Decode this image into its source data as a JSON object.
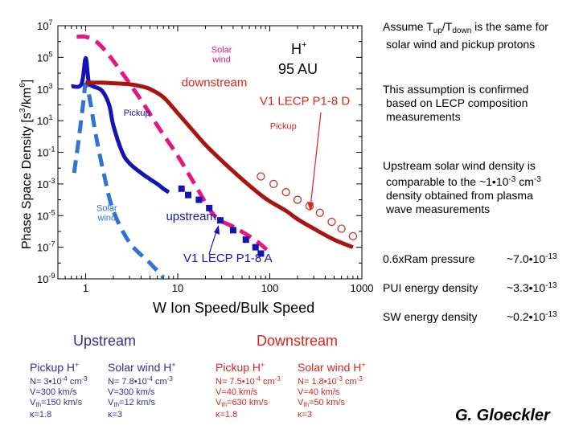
{
  "chart_data": {
    "type": "line",
    "xscale": "log",
    "yscale": "log",
    "xlim": [
      0.5,
      1000
    ],
    "ylim": [
      1e-09,
      10000000.0
    ],
    "xlabel": "W  Ion Speed/Bulk Speed",
    "ylabel_main": "Phase Space Density [s",
    "ylabel_sup1": "3",
    "ylabel_mid": "/km",
    "ylabel_sup2": "6",
    "ylabel_end": "]",
    "species": "H",
    "species_charge": "+",
    "distance": "95 AU",
    "x_ticks": [
      {
        "v": 1,
        "label": "1"
      },
      {
        "v": 10,
        "label": "10"
      },
      {
        "v": 100,
        "label": "100"
      },
      {
        "v": 1000,
        "label": "1000"
      }
    ],
    "y_ticks": [
      {
        "exp": 7,
        "base": "10",
        "sup": "7"
      },
      {
        "exp": 5,
        "base": "10",
        "sup": "5"
      },
      {
        "exp": 3,
        "base": "10",
        "sup": "3"
      },
      {
        "exp": 1,
        "base": "10",
        "sup": "1"
      },
      {
        "exp": -1,
        "base": "10",
        "sup": "-1"
      },
      {
        "exp": -3,
        "base": "10",
        "sup": "-3"
      },
      {
        "exp": -5,
        "base": "10",
        "sup": "-5"
      },
      {
        "exp": -7,
        "base": "10",
        "sup": "-7"
      },
      {
        "exp": -9,
        "base": "10",
        "sup": "-9"
      }
    ],
    "series": [
      {
        "key": "solar_wind_upstream",
        "color": "#2f73d6",
        "style": "dashed",
        "points": [
          [
            0.75,
            0.005
          ],
          [
            0.85,
            1
          ],
          [
            0.95,
            200
          ],
          [
            1.0,
            2000
          ],
          [
            1.1,
            300
          ],
          [
            1.3,
            1
          ],
          [
            1.6,
            0.003
          ],
          [
            2,
            2e-05
          ],
          [
            3,
            2e-07
          ],
          [
            5,
            1e-08
          ],
          [
            7,
            1.2e-09
          ]
        ]
      },
      {
        "key": "pickup_upstream",
        "color": "#1414b4",
        "style": "solid",
        "points": [
          [
            0.7,
            1500
          ],
          [
            0.9,
            2000
          ],
          [
            1.0,
            90000
          ],
          [
            1.08,
            3000
          ],
          [
            1.2,
            1500
          ],
          [
            1.5,
            800
          ],
          [
            1.8,
            100
          ],
          [
            2.0,
            5
          ],
          [
            2.5,
            0.1
          ],
          [
            3,
            0.02
          ],
          [
            4,
            0.005
          ],
          [
            5,
            0.002
          ],
          [
            6,
            0.001
          ],
          [
            7,
            0.0005
          ],
          [
            8,
            0.0003
          ]
        ]
      },
      {
        "key": "solar_wind_downstream",
        "color": "#e5177e",
        "style": "dashed",
        "points": [
          [
            0.8,
            2000000.0
          ],
          [
            1,
            2000000.0
          ],
          [
            1.3,
            1000000.0
          ],
          [
            1.7,
            200000.0
          ],
          [
            2.5,
            10000.0
          ],
          [
            4,
            200
          ],
          [
            6,
            5
          ],
          [
            10,
            0.06
          ],
          [
            15,
            0.0012
          ],
          [
            25,
            1e-05
          ],
          [
            40,
            2e-06
          ],
          [
            60,
            5e-07
          ],
          [
            80,
            1.5e-07
          ],
          [
            95,
            6e-08
          ]
        ]
      },
      {
        "key": "pickup_downstream",
        "color": "#a8150e",
        "style": "solid",
        "points": [
          [
            1,
            2500
          ],
          [
            1.5,
            2500
          ],
          [
            2,
            2300
          ],
          [
            3,
            2000
          ],
          [
            4,
            1500
          ],
          [
            5,
            1000
          ],
          [
            7,
            300
          ],
          [
            10,
            30
          ],
          [
            15,
            2
          ],
          [
            20,
            0.3
          ],
          [
            30,
            0.03
          ],
          [
            50,
            0.002
          ],
          [
            80,
            0.0002
          ],
          [
            100,
            8e-05
          ],
          [
            150,
            2e-05
          ],
          [
            200,
            6e-06
          ],
          [
            300,
            1.5e-06
          ],
          [
            500,
            3e-07
          ],
          [
            800,
            1e-07
          ]
        ]
      }
    ],
    "markers": {
      "v1_lecp_a": {
        "color": "#1414b4",
        "points": [
          [
            11,
            0.0005
          ],
          [
            13,
            0.0002
          ],
          [
            17,
            0.0001
          ],
          [
            22,
            3e-05
          ],
          [
            29,
            5e-06
          ],
          [
            40,
            1.2e-06
          ],
          [
            55,
            3e-07
          ],
          [
            70,
            1e-07
          ],
          [
            80,
            4e-08
          ]
        ]
      },
      "v1_lecp_d": {
        "color": "#c4362d",
        "points": [
          [
            80,
            0.003
          ],
          [
            110,
            0.001
          ],
          [
            150,
            0.0003
          ],
          [
            200,
            0.0001
          ],
          [
            270,
            4e-05
          ],
          [
            350,
            1.5e-05
          ],
          [
            470,
            4e-06
          ],
          [
            600,
            1.5e-06
          ],
          [
            800,
            5e-07
          ]
        ]
      }
    },
    "annotations": [
      {
        "key": "solar_wind_top",
        "lines": [
          "Solar",
          "wind"
        ],
        "x": 30,
        "y": 200000.0,
        "color": "#e5177e",
        "size": 11
      },
      {
        "key": "downstream",
        "lines": [
          "downstream"
        ],
        "x": 25,
        "y": 1500,
        "color": "#d7261e",
        "size": 15
      },
      {
        "key": "v1_d",
        "lines": [
          "V1 LECP P1-8  D"
        ],
        "x": 240,
        "y": 100,
        "color": "#d7261e",
        "size": 15
      },
      {
        "key": "pickup_down",
        "lines": [
          "Pickup"
        ],
        "x": 140,
        "y": 3,
        "color": "#d7261e",
        "size": 11
      },
      {
        "key": "pickup_up",
        "lines": [
          "Pickup"
        ],
        "x": 3.6,
        "y": 20,
        "color": "#1414b4",
        "size": 11
      },
      {
        "key": "solar_wind_up",
        "lines": [
          "Solar",
          "wind"
        ],
        "x": 1.7,
        "y": 2e-05,
        "color": "#2f73d6",
        "size": 11
      },
      {
        "key": "upstream",
        "lines": [
          "upstream"
        ],
        "x": 14,
        "y": 5e-06,
        "color": "#1414b4",
        "size": 15
      },
      {
        "key": "v1_a",
        "lines": [
          "V1 LECP P1-8  A"
        ],
        "x": 35,
        "y": 1.2e-08,
        "color": "#1414b4",
        "size": 15
      }
    ]
  },
  "notes": {
    "assume_prefix": "Assume T",
    "assume_sub_up": "up",
    "assume_slash": "/T",
    "assume_sub_down": "down",
    "assume_suffix": " is the same for",
    "assume_line2": "solar wind and pickup protons",
    "confirm_line1": "This assumption is confirmed",
    "confirm_line2": "based on LECP  composition",
    "confirm_line3": "measurements",
    "upstream_line1": "Upstream solar wind density is",
    "upstream_line2a": "comparable to the ~1•10",
    "upstream_line2_sup": "-3",
    "upstream_line2b": " cm",
    "upstream_line2_sup2": "-3",
    "upstream_line3": "density obtained from plasma",
    "upstream_line4": "wave measurements"
  },
  "energy_rows": [
    {
      "label": "0.6xRam pressure",
      "value": "~7.0•10",
      "exp": "-13"
    },
    {
      "label": "PUI energy density",
      "value": "~3.3•10",
      "exp": "-13"
    },
    {
      "label": "SW energy density",
      "value": "~0.2•10",
      "exp": "-13"
    }
  ],
  "params": {
    "upstream_header": "Upstream",
    "downstream_header": "Downstream",
    "pickup_up": {
      "title": "Pickup H",
      "charge": "+",
      "n": "N= 3•10",
      "n_exp": "-4",
      "unit": "  cm",
      "unit_exp": "-3",
      "v": "V=300 km/s",
      "vth": "=150 km/s",
      "kappa": "κ=1.8"
    },
    "sw_up": {
      "title": "Solar wind H",
      "charge": "+",
      "n": "N= 7.8•10",
      "n_exp": "-4",
      "unit": "  cm",
      "unit_exp": "-3",
      "v": "V=300 km/s",
      "vth": "=12 km/s",
      "kappa": "κ=3"
    },
    "pickup_down": {
      "title": "Pickup H",
      "charge": "+",
      "n": "N= 7.5•10",
      "n_exp": "-4",
      "unit": "  cm",
      "unit_exp": "-3",
      "v": "V=40 km/s",
      "vth": "=630 km/s",
      "kappa": "κ=1.8"
    },
    "sw_down": {
      "title": "Solar wind H",
      "charge": "+",
      "n": "N= 1.8•10",
      "n_exp": "-3",
      "unit": "  cm",
      "unit_exp": "-3",
      "v": "V=40 km/s",
      "vth": "=50 km/s",
      "kappa": "κ=3"
    },
    "vth_letter": "V",
    "vth_sub": "th"
  },
  "author": "G. Gloeckler"
}
